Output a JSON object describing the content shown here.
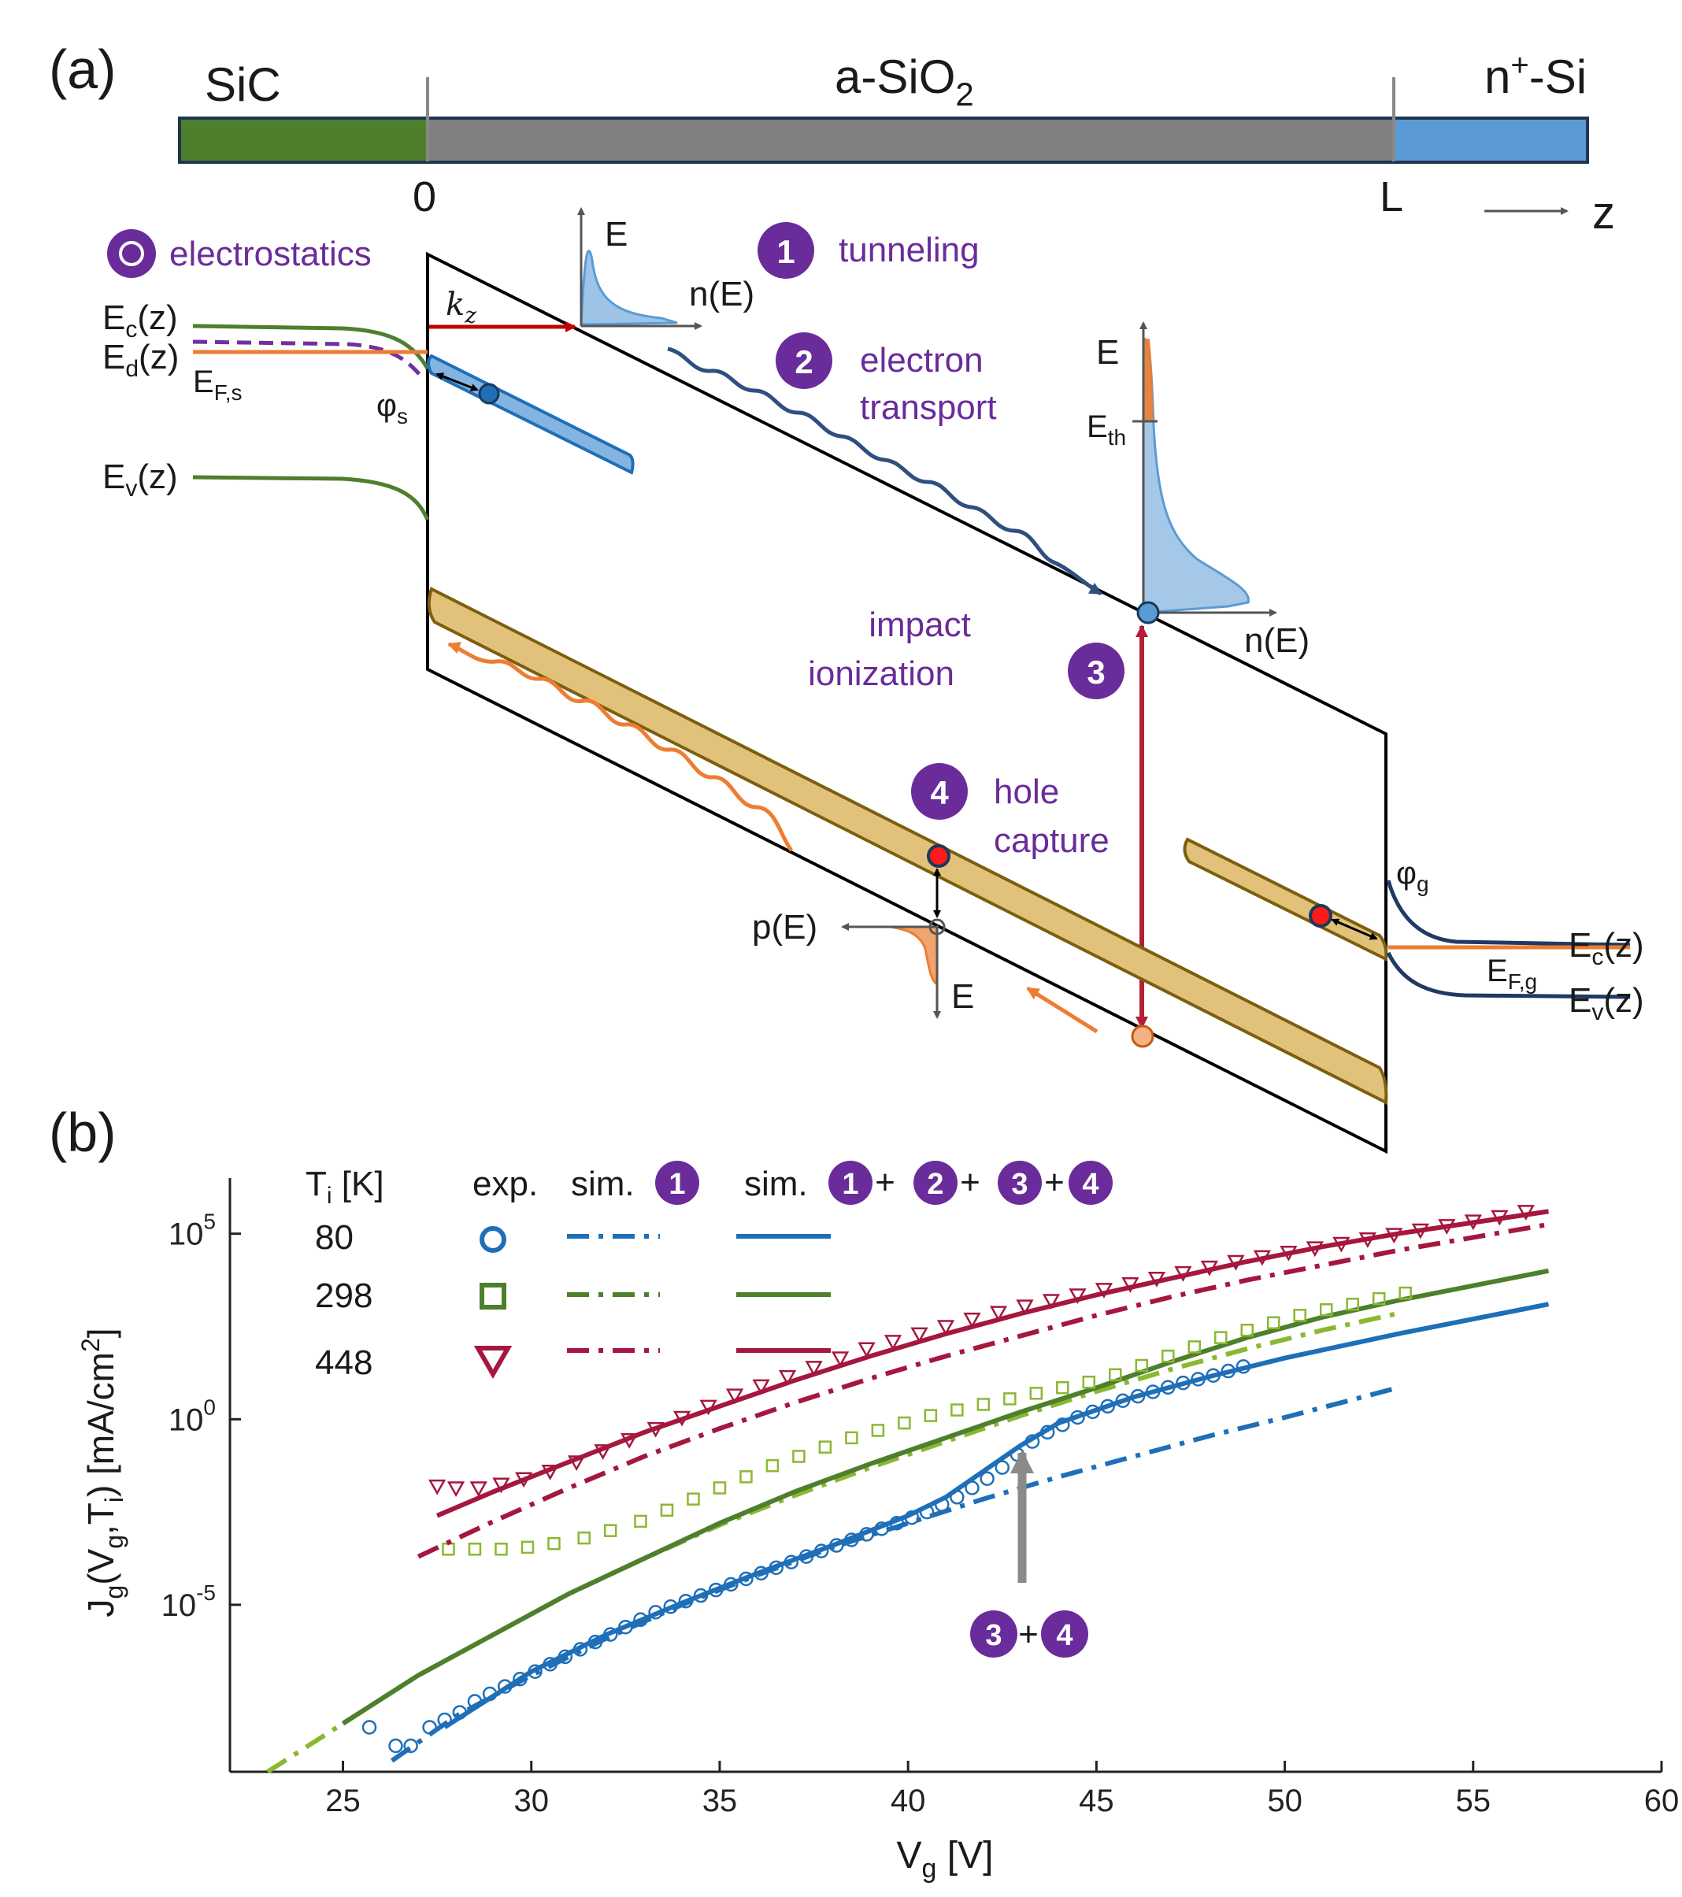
{
  "panel_a": {
    "panel_label": "(a)",
    "layers": {
      "sic": "SiC",
      "oxide_main": "a-SiO",
      "oxide_sub": "2",
      "nsi_main": "n",
      "nsi_sup": "+",
      "nsi_rest": "-Si"
    },
    "axis": {
      "origin": "0",
      "end": "L",
      "direction": "z"
    },
    "electrostatics": "electrostatics",
    "mechanisms": [
      {
        "num": "1",
        "line1": "tunneling",
        "line2": ""
      },
      {
        "num": "2",
        "line1": "electron",
        "line2": "transport"
      },
      {
        "num": "3",
        "line1": "impact",
        "line2": "ionization"
      },
      {
        "num": "4",
        "line1": "hole",
        "line2": "capture"
      }
    ],
    "left_labels": {
      "ec": "E",
      "ec_sub": "c",
      "ec_rest": "(z)",
      "ed": "E",
      "ed_sub": "d",
      "ed_rest": "(z)",
      "ef": "E",
      "ef_sub": "F,s",
      "phi": "φ",
      "phi_sub": "s",
      "ev": "E",
      "ev_sub": "v",
      "ev_rest": "(z)"
    },
    "right_labels": {
      "phi": "φ",
      "phi_sub": "g",
      "ec": "E",
      "ec_sub": "c",
      "ec_rest": "(z)",
      "ef": "E",
      "ef_sub": "F,g",
      "ev": "E",
      "ev_sub": "v",
      "ev_rest": "(z)"
    },
    "kz": {
      "main": "k",
      "sub": "z"
    },
    "energy": "E",
    "eth": {
      "main": "E",
      "sub": "th"
    },
    "n_of_e": "n(E)",
    "p_of_e": "p(E)",
    "colors": {
      "sic": "#4e7f2c",
      "oxide": "#808080",
      "nsi": "#5b9bd5",
      "purple": "#6a2c9a",
      "trap_band": "#e2c27a",
      "trap_edge": "#7b5f0e",
      "orange": "#ed7d31",
      "red_arrow": "#b51e36",
      "navy": "#2f4f7f"
    }
  },
  "panel_b": {
    "panel_label": "(b)",
    "legend": {
      "temp_header": "T",
      "temp_header_sub": "i",
      "temp_header_rest": " [K]",
      "exp": "exp.",
      "sim": "sim.",
      "plus": "+",
      "temps": [
        "80",
        "298",
        "448"
      ]
    },
    "annotation": {
      "n1": "3",
      "plus": "+",
      "n2": "4"
    }
  },
  "chart_data": {
    "type": "line",
    "xlabel": "V",
    "xlabel_sub": "g",
    "xlabel_rest": " [V]",
    "ylabel": "J_g(V_g,T_i) [mA/cm^2]",
    "xlim": [
      22,
      60
    ],
    "ylim_log10": [
      -9.5,
      6.5
    ],
    "xticks": [
      "25",
      "30",
      "35",
      "40",
      "45",
      "50",
      "55",
      "60"
    ],
    "yticks": [
      {
        "base": "10",
        "exp": "5",
        "log10": 5
      },
      {
        "base": "10",
        "exp": "0",
        "log10": 0
      },
      {
        "base": "10",
        "exp": "-5",
        "log10": -5
      }
    ],
    "series": [
      {
        "name": "80 K",
        "color": "#1f6fb8",
        "marker": "circle",
        "exp_x": [
          25.7,
          26.4,
          26.8,
          27.3,
          27.7,
          28.1,
          28.5,
          28.9,
          29.3,
          29.7,
          30.1,
          30.5,
          30.9,
          31.3,
          31.7,
          32.1,
          32.5,
          32.9,
          33.3,
          33.7,
          34.1,
          34.5,
          34.9,
          35.3,
          35.7,
          36.1,
          36.5,
          36.9,
          37.3,
          37.7,
          38.1,
          38.5,
          38.9,
          39.3,
          39.7,
          40.1,
          40.5,
          40.9,
          41.3,
          41.7,
          42.1,
          42.5,
          42.9,
          43.3,
          43.7,
          44.1,
          44.5,
          44.9,
          45.3,
          45.7,
          46.1,
          46.5,
          46.9,
          47.3,
          47.7,
          48.1,
          48.5,
          48.9
        ],
        "exp_logy": [
          -8.3,
          -8.8,
          -8.8,
          -8.3,
          -8.1,
          -7.9,
          -7.6,
          -7.4,
          -7.2,
          -7.0,
          -6.8,
          -6.6,
          -6.4,
          -6.2,
          -6.0,
          -5.8,
          -5.6,
          -5.4,
          -5.2,
          -5.05,
          -4.9,
          -4.75,
          -4.6,
          -4.45,
          -4.3,
          -4.15,
          -4.0,
          -3.85,
          -3.7,
          -3.55,
          -3.4,
          -3.25,
          -3.1,
          -2.95,
          -2.8,
          -2.65,
          -2.5,
          -2.3,
          -2.1,
          -1.85,
          -1.6,
          -1.3,
          -0.95,
          -0.6,
          -0.35,
          -0.15,
          0.05,
          0.2,
          0.35,
          0.5,
          0.62,
          0.74,
          0.86,
          0.98,
          1.08,
          1.18,
          1.3,
          1.42
        ],
        "sim1_x": [
          26.3,
          28,
          30,
          32,
          34,
          36,
          38,
          40,
          42,
          44,
          46,
          48,
          50,
          53
        ],
        "sim1_logy": [
          -9.2,
          -8.0,
          -6.9,
          -5.9,
          -5.0,
          -4.2,
          -3.45,
          -2.8,
          -2.15,
          -1.55,
          -1.0,
          -0.45,
          0.05,
          0.85
        ],
        "sim_full_x": [
          27.7,
          30,
          32,
          34,
          36,
          38,
          40,
          41,
          42,
          43,
          44,
          46,
          48,
          50,
          53,
          57
        ],
        "sim_full_logy": [
          -8.3,
          -6.8,
          -5.8,
          -4.95,
          -4.15,
          -3.4,
          -2.6,
          -2.1,
          -1.4,
          -0.7,
          -0.1,
          0.6,
          1.15,
          1.65,
          2.3,
          3.1
        ]
      },
      {
        "name": "298 K",
        "color": "#8ab832",
        "color_full": "#4e7f2c",
        "marker": "square",
        "exp_x": [
          27.8,
          28.5,
          29.2,
          29.9,
          30.6,
          31.4,
          32.1,
          32.9,
          33.6,
          34.3,
          35.0,
          35.7,
          36.4,
          37.1,
          37.8,
          38.5,
          39.2,
          39.9,
          40.6,
          41.3,
          42.0,
          42.7,
          43.4,
          44.1,
          44.8,
          45.5,
          46.2,
          46.9,
          47.6,
          48.3,
          49.0,
          49.7,
          50.4,
          51.1,
          51.8,
          52.5,
          53.2
        ],
        "exp_logy": [
          -3.5,
          -3.5,
          -3.5,
          -3.45,
          -3.35,
          -3.2,
          -3.0,
          -2.75,
          -2.45,
          -2.15,
          -1.85,
          -1.55,
          -1.25,
          -1.0,
          -0.75,
          -0.5,
          -0.3,
          -0.1,
          0.1,
          0.25,
          0.4,
          0.55,
          0.7,
          0.85,
          1.0,
          1.2,
          1.45,
          1.7,
          1.95,
          2.2,
          2.4,
          2.6,
          2.8,
          2.95,
          3.1,
          3.25,
          3.4
        ],
        "sim1_x": [
          23.0,
          25,
          27,
          29,
          31,
          33,
          35,
          37,
          39,
          41,
          43,
          45,
          47,
          49,
          51,
          53
        ],
        "sim1_logy": [
          -9.5,
          -8.2,
          -6.9,
          -5.8,
          -4.7,
          -3.75,
          -2.85,
          -2.05,
          -1.3,
          -0.6,
          0.1,
          0.75,
          1.35,
          1.9,
          2.4,
          2.85
        ],
        "sim_full_x": [
          25,
          27,
          29,
          31,
          33,
          35,
          37,
          39,
          41,
          43,
          45,
          47,
          49,
          51,
          53,
          55,
          57
        ],
        "sim_full_logy": [
          -8.2,
          -6.9,
          -5.8,
          -4.7,
          -3.75,
          -2.8,
          -1.95,
          -1.2,
          -0.5,
          0.2,
          0.85,
          1.55,
          2.2,
          2.75,
          3.2,
          3.6,
          4.0
        ]
      },
      {
        "name": "448 K",
        "color": "#a5173e",
        "marker": "triangle-down",
        "exp_x": [
          27.5,
          28.0,
          28.6,
          29.2,
          29.8,
          30.5,
          31.2,
          31.9,
          32.6,
          33.3,
          34.0,
          34.7,
          35.4,
          36.1,
          36.8,
          37.5,
          38.2,
          38.9,
          39.6,
          40.3,
          41.0,
          41.7,
          42.4,
          43.1,
          43.8,
          44.5,
          45.2,
          45.9,
          46.6,
          47.3,
          48.0,
          48.7,
          49.4,
          50.1,
          50.8,
          51.5,
          52.2,
          52.9,
          53.6,
          54.3,
          55.0,
          55.7,
          56.4
        ],
        "exp_logy": [
          -1.8,
          -1.85,
          -1.85,
          -1.75,
          -1.6,
          -1.4,
          -1.15,
          -0.85,
          -0.55,
          -0.25,
          0.05,
          0.35,
          0.65,
          0.9,
          1.15,
          1.4,
          1.65,
          1.9,
          2.1,
          2.3,
          2.5,
          2.7,
          2.88,
          3.05,
          3.2,
          3.35,
          3.5,
          3.65,
          3.8,
          3.95,
          4.1,
          4.25,
          4.38,
          4.5,
          4.62,
          4.74,
          4.86,
          4.98,
          5.1,
          5.22,
          5.34,
          5.46,
          5.6
        ],
        "sim1_x": [
          27,
          29,
          31,
          33,
          35,
          37,
          39,
          41,
          43,
          45,
          47,
          49,
          51,
          53,
          55,
          57
        ],
        "sim1_logy": [
          -3.7,
          -2.75,
          -1.85,
          -1.0,
          -0.25,
          0.45,
          1.1,
          1.7,
          2.25,
          2.8,
          3.3,
          3.75,
          4.15,
          4.55,
          4.9,
          5.25
        ],
        "sim_full_x": [
          27.5,
          29,
          31,
          33,
          35,
          37,
          39,
          41,
          43,
          45,
          47,
          49,
          51,
          53,
          55,
          57
        ],
        "sim_full_logy": [
          -2.6,
          -1.95,
          -1.15,
          -0.35,
          0.35,
          1.05,
          1.7,
          2.3,
          2.85,
          3.35,
          3.8,
          4.25,
          4.65,
          5.0,
          5.3,
          5.6
        ]
      }
    ]
  }
}
